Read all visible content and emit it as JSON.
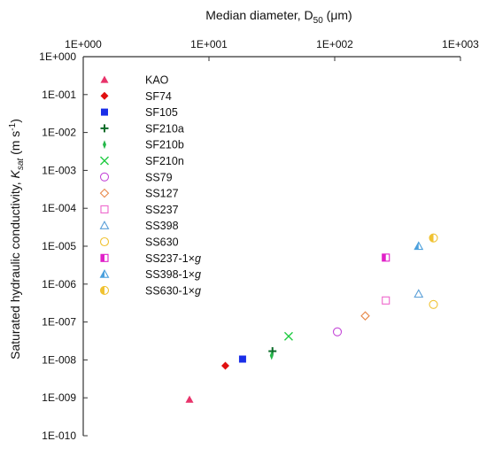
{
  "chart_data": {
    "type": "scatter",
    "xlabel_prefix": "Median diameter, D",
    "xlabel_sub": "50",
    "xlabel_suffix": " (μm)",
    "ylabel_prefix": "Saturated hydraulic conductivity, ",
    "ylabel_var": "K",
    "ylabel_sub": "sat",
    "ylabel_suffix": " (m s",
    "ylabel_sup": "-1",
    "ylabel_close": ")",
    "x_scale": "log",
    "y_scale": "log",
    "xlim": [
      1,
      1000
    ],
    "ylim": [
      1e-10,
      1
    ],
    "x_axis_position": "top",
    "grid": false,
    "legend_position": "top-left",
    "x_ticks": [
      {
        "value": 1,
        "label": "1E+000"
      },
      {
        "value": 10,
        "label": "1E+001"
      },
      {
        "value": 100,
        "label": "1E+002"
      },
      {
        "value": 1000,
        "label": "1E+003"
      }
    ],
    "y_ticks": [
      {
        "value": 1,
        "label": "1E+000"
      },
      {
        "value": 0.1,
        "label": "1E-001"
      },
      {
        "value": 0.01,
        "label": "1E-002"
      },
      {
        "value": 0.001,
        "label": "1E-003"
      },
      {
        "value": 0.0001,
        "label": "1E-004"
      },
      {
        "value": 1e-05,
        "label": "1E-005"
      },
      {
        "value": 1e-06,
        "label": "1E-006"
      },
      {
        "value": 1e-07,
        "label": "1E-007"
      },
      {
        "value": 1e-08,
        "label": "1E-008"
      },
      {
        "value": 1e-09,
        "label": "1E-009"
      },
      {
        "value": 1e-10,
        "label": "1E-010"
      }
    ],
    "series": [
      {
        "name": "KAO",
        "marker": "triangle-filled",
        "color": "#e8336a",
        "points": [
          {
            "x": 7,
            "y": 9e-10
          }
        ]
      },
      {
        "name": "SF74",
        "marker": "diamond-filled",
        "color": "#e01010",
        "points": [
          {
            "x": 13.5,
            "y": 7e-09
          }
        ]
      },
      {
        "name": "SF105",
        "marker": "square-filled",
        "color": "#1a2ee8",
        "points": [
          {
            "x": 18.5,
            "y": 1.05e-08
          }
        ]
      },
      {
        "name": "SF210a",
        "marker": "plus",
        "color": "#0a6b28",
        "points": [
          {
            "x": 32,
            "y": 1.7e-08
          }
        ]
      },
      {
        "name": "SF210b",
        "marker": "thin-diamond",
        "color": "#25b84a",
        "points": [
          {
            "x": 31.5,
            "y": 1.3e-08
          }
        ]
      },
      {
        "name": "SF210n",
        "marker": "x",
        "color": "#22cc44",
        "points": [
          {
            "x": 43,
            "y": 4.2e-08
          }
        ]
      },
      {
        "name": "SS79",
        "marker": "circle-open",
        "color": "#c447d8",
        "points": [
          {
            "x": 105,
            "y": 5.5e-08
          }
        ]
      },
      {
        "name": "SS127",
        "marker": "diamond-open",
        "color": "#e8894a",
        "points": [
          {
            "x": 175,
            "y": 1.45e-07
          }
        ]
      },
      {
        "name": "SS237",
        "marker": "square-open",
        "color": "#ee66cc",
        "points": [
          {
            "x": 255,
            "y": 3.7e-07
          }
        ]
      },
      {
        "name": "SS398",
        "marker": "triangle-open",
        "color": "#5a9fd8",
        "points": [
          {
            "x": 465,
            "y": 5.5e-07
          }
        ]
      },
      {
        "name": "SS630",
        "marker": "circle-open",
        "color": "#f0c232",
        "points": [
          {
            "x": 610,
            "y": 2.9e-07
          }
        ]
      },
      {
        "name": "SS237-1×g",
        "marker": "square-half",
        "color": "#e020c8",
        "points": [
          {
            "x": 255,
            "y": 5e-06
          }
        ]
      },
      {
        "name": "SS398-1×g",
        "marker": "triangle-half",
        "color": "#4aa0dd",
        "points": [
          {
            "x": 465,
            "y": 1e-05
          }
        ]
      },
      {
        "name": "SS630-1×g",
        "marker": "circle-half",
        "color": "#f0c232",
        "points": [
          {
            "x": 610,
            "y": 1.65e-05
          }
        ]
      }
    ]
  }
}
